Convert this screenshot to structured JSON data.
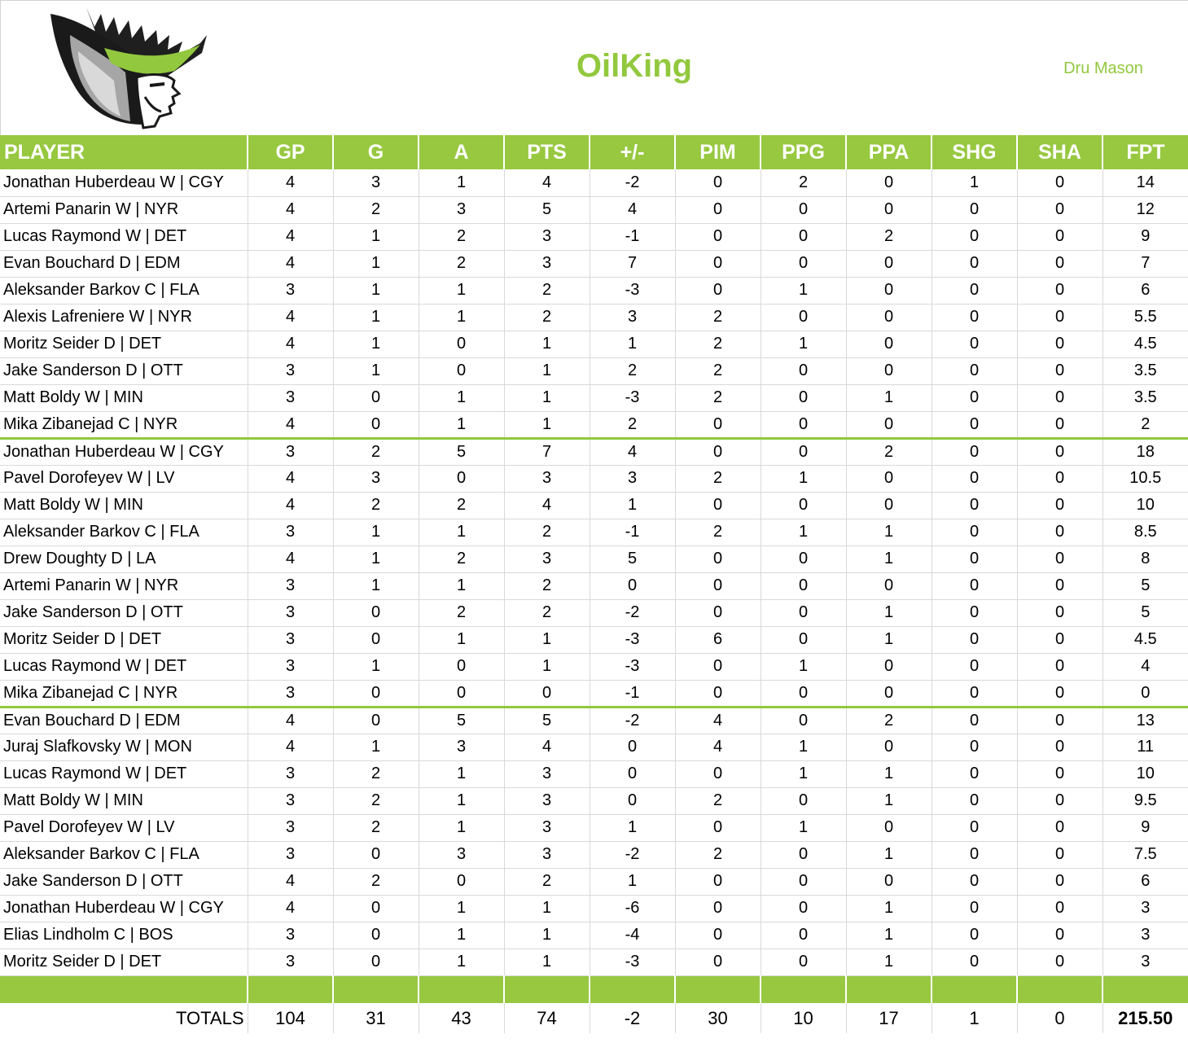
{
  "header": {
    "team_name": "OilKing",
    "owner_name": "Dru Mason"
  },
  "colors": {
    "accent": "#97c840",
    "title_green": "#92c83e"
  },
  "table": {
    "columns": [
      "PLAYER",
      "GP",
      "G",
      "A",
      "PTS",
      "+/-",
      "PIM",
      "PPG",
      "PPA",
      "SHG",
      "SHA",
      "FPT"
    ],
    "groups": [
      [
        [
          "Jonathan Huberdeau W | CGY",
          "4",
          "3",
          "1",
          "4",
          "-2",
          "0",
          "2",
          "0",
          "1",
          "0",
          "14"
        ],
        [
          "Artemi Panarin W | NYR",
          "4",
          "2",
          "3",
          "5",
          "4",
          "0",
          "0",
          "0",
          "0",
          "0",
          "12"
        ],
        [
          "Lucas Raymond W | DET",
          "4",
          "1",
          "2",
          "3",
          "-1",
          "0",
          "0",
          "2",
          "0",
          "0",
          "9"
        ],
        [
          "Evan Bouchard D | EDM",
          "4",
          "1",
          "2",
          "3",
          "7",
          "0",
          "0",
          "0",
          "0",
          "0",
          "7"
        ],
        [
          "Aleksander Barkov C | FLA",
          "3",
          "1",
          "1",
          "2",
          "-3",
          "0",
          "1",
          "0",
          "0",
          "0",
          "6"
        ],
        [
          "Alexis Lafreniere W | NYR",
          "4",
          "1",
          "1",
          "2",
          "3",
          "2",
          "0",
          "0",
          "0",
          "0",
          "5.5"
        ],
        [
          "Moritz Seider D | DET",
          "4",
          "1",
          "0",
          "1",
          "1",
          "2",
          "1",
          "0",
          "0",
          "0",
          "4.5"
        ],
        [
          "Jake Sanderson D | OTT",
          "3",
          "1",
          "0",
          "1",
          "2",
          "2",
          "0",
          "0",
          "0",
          "0",
          "3.5"
        ],
        [
          "Matt Boldy W | MIN",
          "3",
          "0",
          "1",
          "1",
          "-3",
          "2",
          "0",
          "1",
          "0",
          "0",
          "3.5"
        ],
        [
          "Mika Zibanejad C | NYR",
          "4",
          "0",
          "1",
          "1",
          "2",
          "0",
          "0",
          "0",
          "0",
          "0",
          "2"
        ]
      ],
      [
        [
          "Jonathan Huberdeau W | CGY",
          "3",
          "2",
          "5",
          "7",
          "4",
          "0",
          "0",
          "2",
          "0",
          "0",
          "18"
        ],
        [
          "Pavel Dorofeyev W | LV",
          "4",
          "3",
          "0",
          "3",
          "3",
          "2",
          "1",
          "0",
          "0",
          "0",
          "10.5"
        ],
        [
          "Matt Boldy W | MIN",
          "4",
          "2",
          "2",
          "4",
          "1",
          "0",
          "0",
          "0",
          "0",
          "0",
          "10"
        ],
        [
          "Aleksander Barkov C | FLA",
          "3",
          "1",
          "1",
          "2",
          "-1",
          "2",
          "1",
          "1",
          "0",
          "0",
          "8.5"
        ],
        [
          "Drew Doughty D | LA",
          "4",
          "1",
          "2",
          "3",
          "5",
          "0",
          "0",
          "1",
          "0",
          "0",
          "8"
        ],
        [
          "Artemi Panarin W | NYR",
          "3",
          "1",
          "1",
          "2",
          "0",
          "0",
          "0",
          "0",
          "0",
          "0",
          "5"
        ],
        [
          "Jake Sanderson D | OTT",
          "3",
          "0",
          "2",
          "2",
          "-2",
          "0",
          "0",
          "1",
          "0",
          "0",
          "5"
        ],
        [
          "Moritz Seider D | DET",
          "3",
          "0",
          "1",
          "1",
          "-3",
          "6",
          "0",
          "1",
          "0",
          "0",
          "4.5"
        ],
        [
          "Lucas Raymond W | DET",
          "3",
          "1",
          "0",
          "1",
          "-3",
          "0",
          "1",
          "0",
          "0",
          "0",
          "4"
        ],
        [
          "Mika Zibanejad C | NYR",
          "3",
          "0",
          "0",
          "0",
          "-1",
          "0",
          "0",
          "0",
          "0",
          "0",
          "0"
        ]
      ],
      [
        [
          "Evan Bouchard D | EDM",
          "4",
          "0",
          "5",
          "5",
          "-2",
          "4",
          "0",
          "2",
          "0",
          "0",
          "13"
        ],
        [
          "Juraj Slafkovsky W | MON",
          "4",
          "1",
          "3",
          "4",
          "0",
          "4",
          "1",
          "0",
          "0",
          "0",
          "11"
        ],
        [
          "Lucas Raymond W | DET",
          "3",
          "2",
          "1",
          "3",
          "0",
          "0",
          "1",
          "1",
          "0",
          "0",
          "10"
        ],
        [
          "Matt Boldy W | MIN",
          "3",
          "2",
          "1",
          "3",
          "0",
          "2",
          "0",
          "1",
          "0",
          "0",
          "9.5"
        ],
        [
          "Pavel Dorofeyev W | LV",
          "3",
          "2",
          "1",
          "3",
          "1",
          "0",
          "1",
          "0",
          "0",
          "0",
          "9"
        ],
        [
          "Aleksander Barkov C | FLA",
          "3",
          "0",
          "3",
          "3",
          "-2",
          "2",
          "0",
          "1",
          "0",
          "0",
          "7.5"
        ],
        [
          "Jake Sanderson D | OTT",
          "4",
          "2",
          "0",
          "2",
          "1",
          "0",
          "0",
          "0",
          "0",
          "0",
          "6"
        ],
        [
          "Jonathan Huberdeau W | CGY",
          "4",
          "0",
          "1",
          "1",
          "-6",
          "0",
          "0",
          "1",
          "0",
          "0",
          "3"
        ],
        [
          "Elias Lindholm C | BOS",
          "3",
          "0",
          "1",
          "1",
          "-4",
          "0",
          "0",
          "1",
          "0",
          "0",
          "3"
        ],
        [
          "Moritz Seider D | DET",
          "3",
          "0",
          "1",
          "1",
          "-3",
          "0",
          "0",
          "1",
          "0",
          "0",
          "3"
        ]
      ]
    ],
    "totals": [
      "TOTALS",
      "104",
      "31",
      "43",
      "74",
      "-2",
      "30",
      "10",
      "17",
      "1",
      "0",
      "215.50"
    ]
  }
}
